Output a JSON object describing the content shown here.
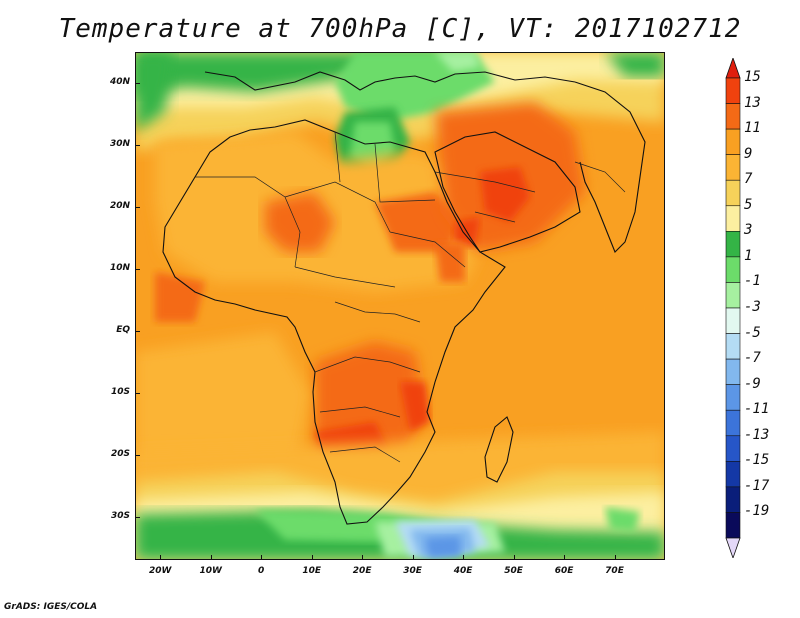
{
  "title": "Temperature at 700hPa [C], VT: 2017102712",
  "footer": "GrADS: IGES/COLA",
  "map": {
    "projection": "latlon",
    "lon_range": [
      -25,
      80
    ],
    "lat_range": [
      -37,
      45
    ],
    "lat_ticks": [
      {
        "value": 40,
        "label": "40N"
      },
      {
        "value": 30,
        "label": "30N"
      },
      {
        "value": 20,
        "label": "20N"
      },
      {
        "value": 10,
        "label": "10N"
      },
      {
        "value": 0,
        "label": "EQ"
      },
      {
        "value": -10,
        "label": "10S"
      },
      {
        "value": -20,
        "label": "20S"
      },
      {
        "value": -30,
        "label": "30S"
      }
    ],
    "lon_ticks": [
      {
        "value": -20,
        "label": "20W"
      },
      {
        "value": -10,
        "label": "10W"
      },
      {
        "value": 0,
        "label": "0"
      },
      {
        "value": 10,
        "label": "10E"
      },
      {
        "value": 20,
        "label": "20E"
      },
      {
        "value": 30,
        "label": "30E"
      },
      {
        "value": 40,
        "label": "40E"
      },
      {
        "value": 50,
        "label": "50E"
      },
      {
        "value": 60,
        "label": "60E"
      },
      {
        "value": 70,
        "label": "70E"
      }
    ]
  },
  "colorbar": {
    "labels": [
      "15",
      "13",
      "11",
      "9",
      "7",
      "5",
      "3",
      "1",
      "-1",
      "-3",
      "-5",
      "-7",
      "-9",
      "-11",
      "-13",
      "-15",
      "-17",
      "-19"
    ],
    "colors": [
      "#e01e0e",
      "#f0420e",
      "#f46a16",
      "#f9a022",
      "#fbb434",
      "#f6d25a",
      "#fcefa0",
      "#34b446",
      "#6cdc6a",
      "#a6f0a0",
      "#e2f8f0",
      "#b4dcf4",
      "#82b8ee",
      "#5c96e6",
      "#3c74da",
      "#2656c8",
      "#1438a6",
      "#0a1e7a",
      "#0a0a5a",
      "#e4d8f8"
    ]
  }
}
